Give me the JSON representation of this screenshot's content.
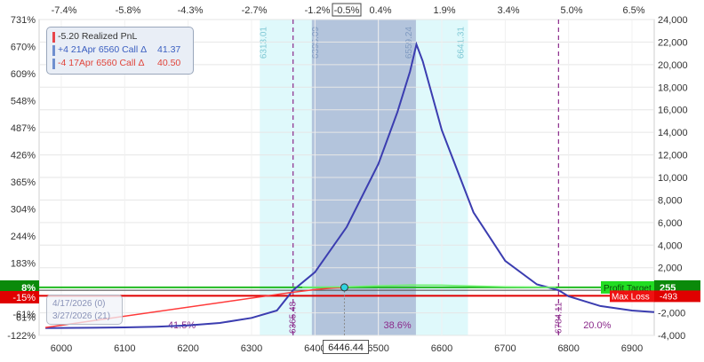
{
  "legend": {
    "items": [
      {
        "label": "-5.20 Realized PnL",
        "value": "",
        "color": "#e8454a",
        "text_color": "#333333"
      },
      {
        "label": "+4 21Apr 6560 Call Δ",
        "value": "41.37",
        "color": "#6f8fcf",
        "text_color": "#3a5ec0"
      },
      {
        "label": "-4 17Apr 6560 Call Δ",
        "value": "40.50",
        "color": "#6f8fcf",
        "text_color": "#e0443a"
      }
    ]
  },
  "dates_box": {
    "line1": "4/17/2026 (0)",
    "line2": "3/27/2026 (21)"
  },
  "current_price": "6446.44",
  "chart_data": {
    "type": "line",
    "x_range": [
      5965,
      6935
    ],
    "x_ticks": [
      "6000",
      "6100",
      "6200",
      "6300",
      "6400",
      "6500",
      "6600",
      "6700",
      "6800",
      "6900"
    ],
    "top_pct_ticks": [
      "-7.4%",
      "-5.8%",
      "-4.3%",
      "-2.7%",
      "-1.2%",
      "-0.5%",
      "0.4%",
      "1.9%",
      "3.4%",
      "5.0%",
      "6.5%"
    ],
    "highlighted_pct": "-0.5%",
    "left_axis_ticks": [
      "731%",
      "670%",
      "609%",
      "548%",
      "487%",
      "426%",
      "365%",
      "304%",
      "244%",
      "183%",
      "122%",
      "61%",
      "8%",
      "-15%",
      "-61%",
      "-122%"
    ],
    "right_axis_range": [
      -4000,
      24000
    ],
    "right_axis_ticks": [
      "24,000",
      "22,000",
      "20,000",
      "18,000",
      "16,000",
      "14,000",
      "12,000",
      "10,000",
      "8,000",
      "6,000",
      "4,000",
      "2,000",
      "0",
      "-2,000",
      "-4,000"
    ],
    "expected_move_bands": [
      {
        "from": 6313.01,
        "to": 6641.31,
        "label_from": "6313.01",
        "label_to": "6641.31"
      },
      {
        "from": 6395.09,
        "to": 6559.24,
        "label_from": "6395.09",
        "label_to": "6559.24"
      }
    ],
    "breakevens": [
      {
        "x": 6365.48,
        "label": "6365.48"
      },
      {
        "x": 6784.11,
        "label": "6784.11"
      }
    ],
    "probabilities": [
      {
        "label": "41.5%",
        "x": 6190
      },
      {
        "label": "38.6%",
        "x": 6530
      },
      {
        "label": "20.0%",
        "x": 6845
      }
    ],
    "profit_target": {
      "label": "Profit Target",
      "value": "255",
      "y": 255
    },
    "max_loss": {
      "label": "Max Loss",
      "value": "-493",
      "y": -493
    },
    "current_marker": {
      "x": 6446.44,
      "y": 255
    },
    "series": [
      {
        "color": "#3b3db0",
        "points": [
          [
            5975,
            -3350
          ],
          [
            6000,
            -3340
          ],
          [
            6050,
            -3320
          ],
          [
            6100,
            -3290
          ],
          [
            6150,
            -3230
          ],
          [
            6200,
            -3120
          ],
          [
            6250,
            -2900
          ],
          [
            6300,
            -2450
          ],
          [
            6340,
            -1800
          ],
          [
            6365.48,
            0
          ],
          [
            6400,
            1600
          ],
          [
            6450,
            5600
          ],
          [
            6500,
            11200
          ],
          [
            6530,
            15800
          ],
          [
            6550,
            19400
          ],
          [
            6560,
            21800
          ],
          [
            6570,
            20300
          ],
          [
            6600,
            14200
          ],
          [
            6650,
            6900
          ],
          [
            6700,
            2600
          ],
          [
            6750,
            520
          ],
          [
            6784.11,
            0
          ],
          [
            6800,
            -540
          ],
          [
            6850,
            -1400
          ],
          [
            6900,
            -1800
          ],
          [
            6935,
            -1940
          ]
        ]
      },
      {
        "color": "#ff3a3a",
        "points": [
          [
            5975,
            -3300
          ],
          [
            6360,
            -220
          ],
          [
            6400,
            60
          ],
          [
            6430,
            210
          ],
          [
            6446,
            255
          ]
        ]
      },
      {
        "color": "#6ef26e",
        "points": [
          [
            6380,
            255
          ],
          [
            6450,
            300
          ],
          [
            6500,
            400
          ],
          [
            6550,
            470
          ],
          [
            6600,
            450
          ],
          [
            6650,
            370
          ],
          [
            6700,
            300
          ],
          [
            6780,
            255
          ]
        ]
      }
    ]
  }
}
